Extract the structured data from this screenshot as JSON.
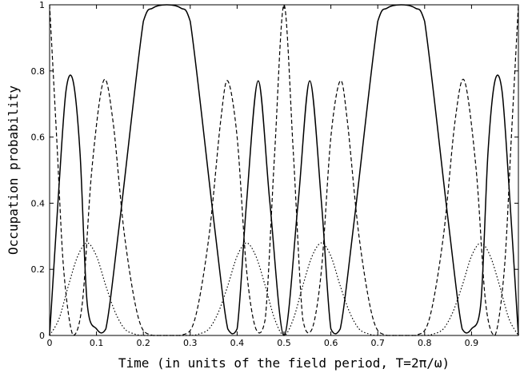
{
  "chart_data": {
    "type": "line",
    "title": "",
    "xlabel": "Time (in units of the field period, T=2π/ω)",
    "ylabel": "Occupation probability",
    "xlim": [
      0,
      1
    ],
    "ylim": [
      0,
      1
    ],
    "xticks": [
      "0",
      "0.1",
      "0.2",
      "0.3",
      "0.4",
      "0.5",
      "0.6",
      "0.7",
      "0.8",
      "0.9"
    ],
    "yticks": [
      "0",
      "0.2",
      "0.4",
      "0.6",
      "0.8",
      "1"
    ],
    "grid": false,
    "legend": "none",
    "series": [
      {
        "style": "solid",
        "x": [
          0,
          0.02,
          0.035,
          0.05,
          0.065,
          0.08,
          0.1,
          0.12,
          0.15,
          0.2,
          0.22,
          0.25,
          0.28,
          0.3,
          0.35,
          0.38,
          0.4,
          0.42,
          0.445,
          0.47,
          0.5,
          0.53,
          0.555,
          0.58,
          0.6,
          0.62,
          0.65,
          0.7,
          0.72,
          0.75,
          0.78,
          0.8,
          0.85,
          0.88,
          0.9,
          0.92,
          0.935,
          0.95,
          0.965,
          0.98,
          1.0
        ],
        "values": [
          0,
          0.45,
          0.74,
          0.77,
          0.55,
          0.1,
          0.02,
          0.02,
          0.35,
          0.95,
          0.99,
          1.0,
          0.99,
          0.95,
          0.35,
          0.02,
          0.02,
          0.4,
          0.77,
          0.4,
          0,
          0.4,
          0.77,
          0.4,
          0.02,
          0.02,
          0.35,
          0.95,
          0.99,
          1.0,
          0.99,
          0.95,
          0.35,
          0.02,
          0.02,
          0.1,
          0.55,
          0.77,
          0.74,
          0.45,
          0
        ]
      },
      {
        "style": "dashed",
        "x": [
          0,
          0.015,
          0.03,
          0.05,
          0.07,
          0.09,
          0.115,
          0.135,
          0.16,
          0.19,
          0.22,
          0.28,
          0.31,
          0.34,
          0.365,
          0.38,
          0.4,
          0.42,
          0.44,
          0.46,
          0.48,
          0.5,
          0.52,
          0.54,
          0.56,
          0.58,
          0.6,
          0.62,
          0.635,
          0.66,
          0.69,
          0.72,
          0.78,
          0.81,
          0.84,
          0.865,
          0.885,
          0.91,
          0.93,
          0.95,
          0.97,
          0.985,
          1.0
        ],
        "values": [
          1.0,
          0.6,
          0.2,
          0.0,
          0.1,
          0.5,
          0.77,
          0.65,
          0.3,
          0.05,
          0.0,
          0.0,
          0.05,
          0.3,
          0.65,
          0.77,
          0.6,
          0.2,
          0.02,
          0.05,
          0.55,
          1.0,
          0.55,
          0.05,
          0.02,
          0.2,
          0.6,
          0.77,
          0.65,
          0.3,
          0.05,
          0.0,
          0.0,
          0.05,
          0.3,
          0.65,
          0.77,
          0.5,
          0.1,
          0.0,
          0.2,
          0.6,
          1.0
        ]
      },
      {
        "style": "dotted",
        "x": [
          0,
          0.02,
          0.04,
          0.06,
          0.08,
          0.1,
          0.12,
          0.14,
          0.16,
          0.18,
          0.2,
          0.25,
          0.3,
          0.32,
          0.34,
          0.36,
          0.38,
          0.4,
          0.42,
          0.44,
          0.46,
          0.48,
          0.5,
          0.52,
          0.54,
          0.56,
          0.58,
          0.6,
          0.62,
          0.64,
          0.66,
          0.68,
          0.7,
          0.75,
          0.8,
          0.82,
          0.84,
          0.86,
          0.88,
          0.9,
          0.92,
          0.94,
          0.96,
          0.98,
          1.0
        ],
        "values": [
          0,
          0.05,
          0.15,
          0.24,
          0.28,
          0.24,
          0.15,
          0.07,
          0.02,
          0.005,
          0,
          0,
          0,
          0.005,
          0.02,
          0.07,
          0.15,
          0.24,
          0.28,
          0.24,
          0.15,
          0.05,
          0,
          0.05,
          0.15,
          0.24,
          0.28,
          0.24,
          0.15,
          0.07,
          0.02,
          0.005,
          0,
          0,
          0,
          0.005,
          0.02,
          0.07,
          0.15,
          0.24,
          0.28,
          0.24,
          0.15,
          0.05,
          0
        ]
      }
    ]
  }
}
